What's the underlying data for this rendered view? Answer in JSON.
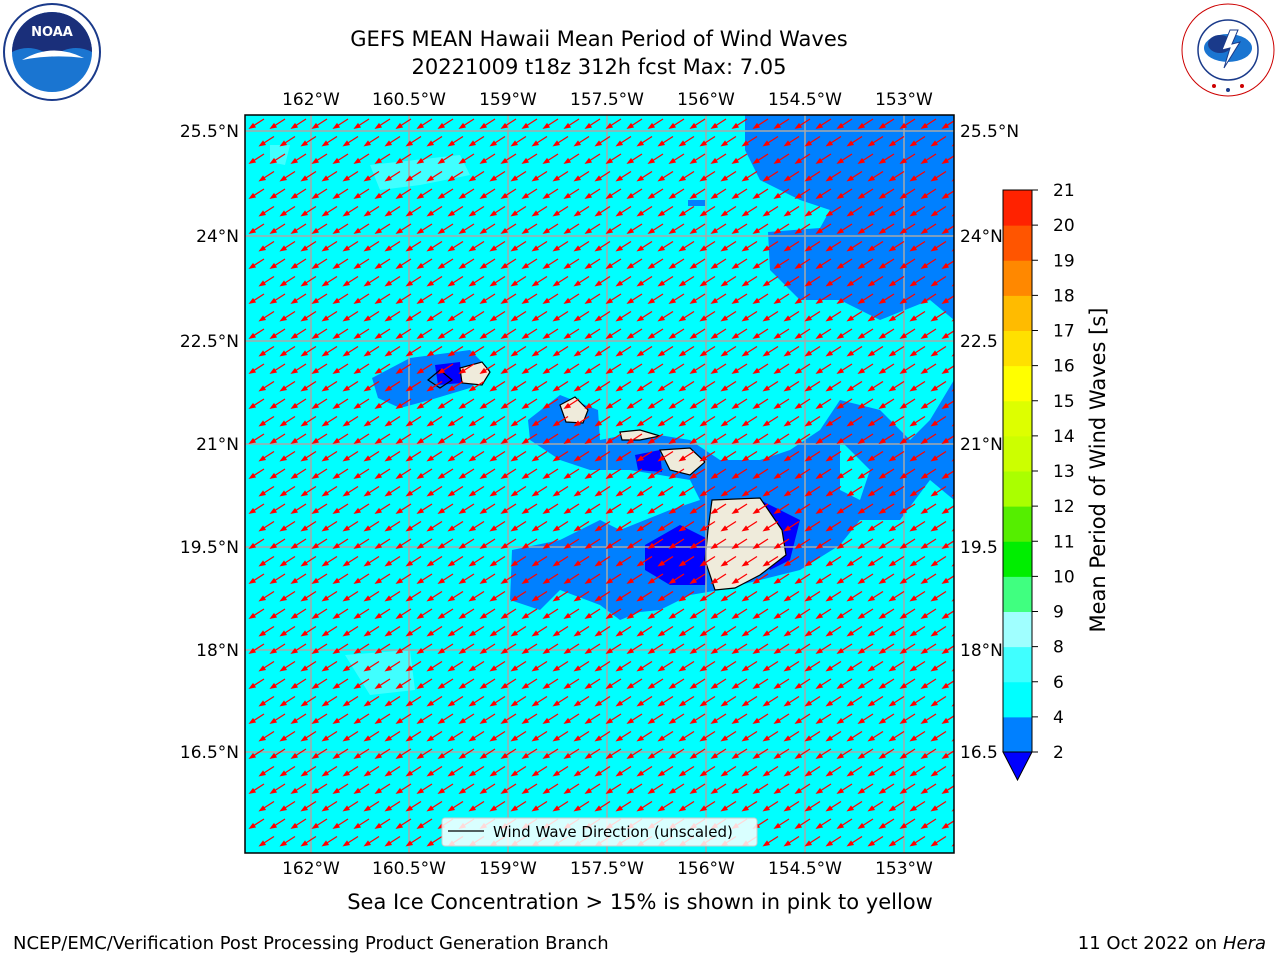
{
  "header": {
    "title_line1": "GEFS MEAN Hawaii Mean Period of Wind Waves",
    "title_line2": "20221009 t18z 312h fcst   Max: 7.05"
  },
  "logos": {
    "left": {
      "name": "noaa-logo",
      "text": "NOAA"
    },
    "right": {
      "name": "nws-logo",
      "text": "NATIONAL WEATHER SERVICE"
    }
  },
  "map": {
    "lon_labels": [
      "162°W",
      "160.5°W",
      "159°W",
      "157.5°W",
      "156°W",
      "154.5°W",
      "153°W"
    ],
    "lat_labels": [
      "25.5°N",
      "24°N",
      "22.5°N",
      "21°N",
      "19.5°N",
      "18°N",
      "16.5°N"
    ],
    "lat_labels_right": [
      "25.5°N",
      "24°N",
      "22.5",
      "21°N",
      "19.5",
      "18°N",
      "16.5"
    ],
    "legend_label": "Wind Wave Direction (unscaled)",
    "arrow_color": "#ff0000",
    "ocean_color": "#00ffff",
    "land_color": "#efebdb"
  },
  "colorbar": {
    "label": "Mean Period of Wind Waves [s]",
    "ticks": [
      "2",
      "4",
      "6",
      "8",
      "9",
      "10",
      "11",
      "12",
      "13",
      "14",
      "15",
      "16",
      "17",
      "18",
      "19",
      "20",
      "21"
    ],
    "colors": [
      "#0080ff",
      "#00ffff",
      "#40ffff",
      "#a0ffff",
      "#40ff80",
      "#00ee00",
      "#55ee00",
      "#aaff00",
      "#ccff00",
      "#ddff00",
      "#ffff00",
      "#ffe000",
      "#ffbb00",
      "#ff8800",
      "#ff5500",
      "#ff2200",
      "#ff0000"
    ],
    "extend_color": "#0000ff"
  },
  "caption": "Sea Ice Concentration > 15% is shown in pink to yellow",
  "footer": {
    "left": "NCEP/EMC/Verification Post Processing Product Generation Branch",
    "right_date": "11 Oct 2022 on ",
    "right_host": "Hera"
  }
}
